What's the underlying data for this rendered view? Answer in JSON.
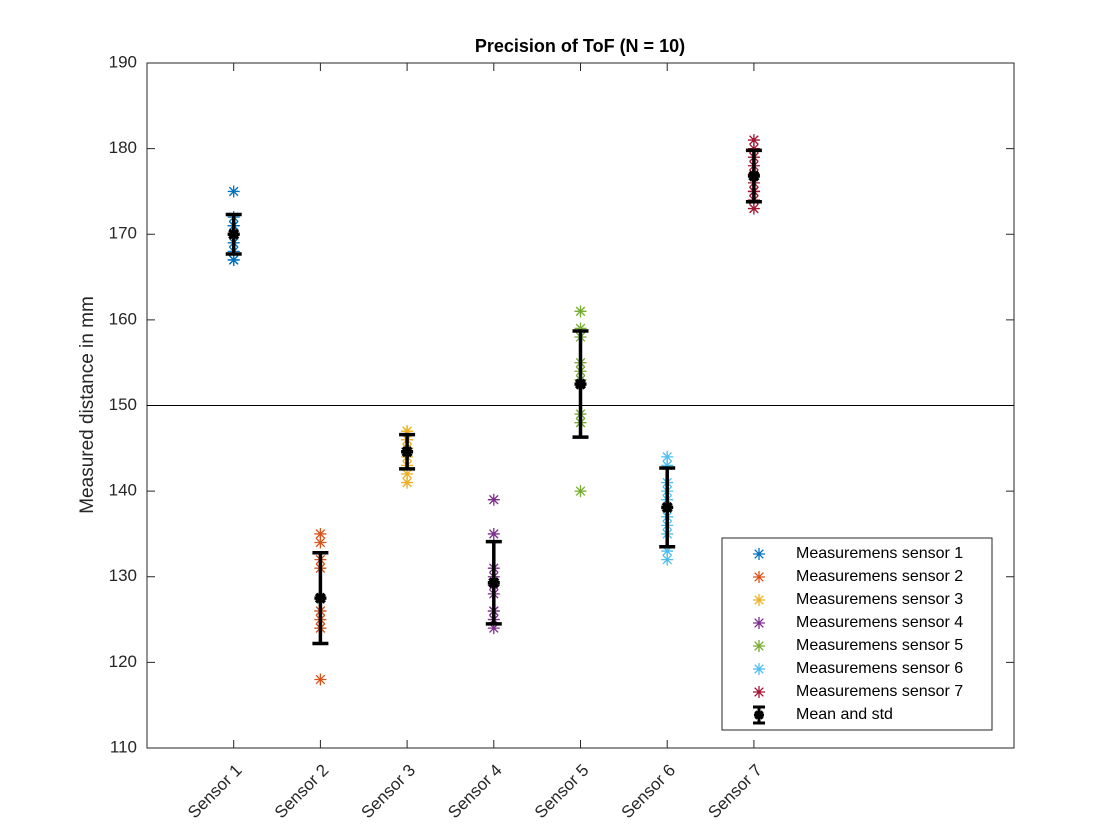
{
  "chart_data": {
    "type": "errorbar-scatter",
    "title": "Precision of ToF (N = 10)",
    "ylabel": "Measured distance in mm",
    "xlim": [
      0,
      10
    ],
    "xticks": [
      {
        "value": 1,
        "label": "Sensor 1"
      },
      {
        "value": 2,
        "label": "Sensor 2"
      },
      {
        "value": 3,
        "label": "Sensor 3"
      },
      {
        "value": 4,
        "label": "Sensor 4"
      },
      {
        "value": 5,
        "label": "Sensor 5"
      },
      {
        "value": 6,
        "label": "Sensor 6"
      },
      {
        "value": 7,
        "label": "Sensor 7"
      }
    ],
    "ylim": [
      110,
      190
    ],
    "yticks": [
      110,
      120,
      130,
      140,
      150,
      160,
      170,
      180,
      190
    ],
    "hline": 150,
    "legend": "southeast",
    "series": [
      {
        "name": "Measuremens sensor 1",
        "color": "#0072BD",
        "x": 1,
        "values": [
          175,
          172,
          171,
          171,
          170,
          170,
          169,
          168,
          167,
          167
        ]
      },
      {
        "name": "Measuremens sensor 2",
        "color": "#D95319",
        "x": 2,
        "values": [
          135,
          134,
          132,
          131,
          126,
          126,
          125,
          124,
          124,
          118
        ]
      },
      {
        "name": "Measuremens sensor 3",
        "color": "#EDB120",
        "x": 3,
        "values": [
          147,
          147,
          146,
          146,
          145,
          145,
          144,
          143,
          142,
          141
        ]
      },
      {
        "name": "Measuremens sensor 4",
        "color": "#7E2F8E",
        "x": 4,
        "values": [
          139,
          135,
          131,
          130,
          129,
          128,
          126,
          126,
          125,
          124
        ]
      },
      {
        "name": "Measuremens sensor 5",
        "color": "#77AC30",
        "x": 5,
        "values": [
          161,
          159,
          158,
          155,
          154,
          153,
          149,
          148,
          148,
          140
        ]
      },
      {
        "name": "Measuremens sensor 6",
        "color": "#4DBEEE",
        "x": 6,
        "values": [
          144,
          143,
          141,
          140,
          139,
          137,
          136,
          135,
          133,
          132
        ]
      },
      {
        "name": "Measuremens sensor 7",
        "color": "#A2142F",
        "x": 7,
        "values": [
          181,
          180,
          179,
          178,
          177,
          176,
          175,
          175,
          174,
          173
        ]
      }
    ],
    "errorbar": {
      "name": "Mean and std",
      "color": "#000000",
      "x": [
        1,
        2,
        3,
        4,
        5,
        6,
        7
      ],
      "values": [
        170,
        127.5,
        144.6,
        129.3,
        152.5,
        138.1,
        176.8
      ],
      "errors": [
        2.3,
        5.3,
        2,
        4.8,
        6.2,
        4.6,
        3
      ]
    }
  }
}
